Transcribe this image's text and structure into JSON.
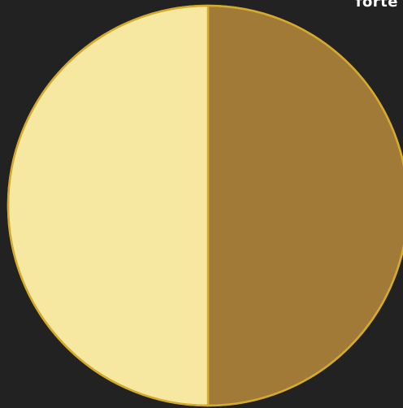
{
  "header": {
    "corner_text": "forte"
  },
  "chart_data": {
    "type": "pie",
    "values": [
      50,
      50
    ],
    "colors": [
      "#A17A38",
      "#F6E8A1"
    ],
    "outline_color": "#D4AA2C",
    "start_angle_deg": 0,
    "direction": "clockwise"
  }
}
